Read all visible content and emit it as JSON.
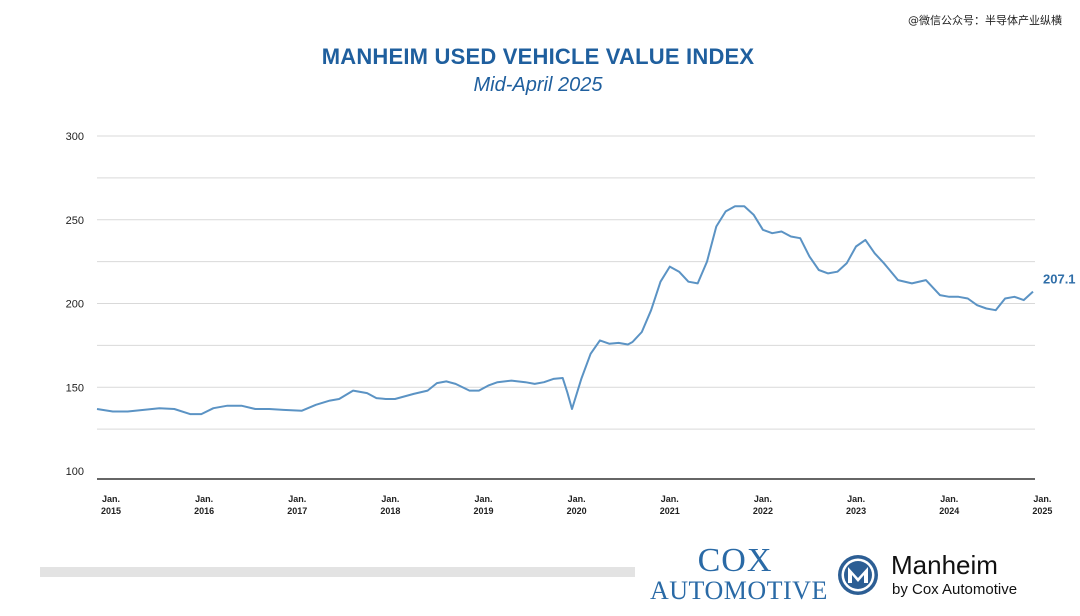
{
  "watermark": "@微信公众号：半导体产业纵横",
  "chart_data": {
    "type": "line",
    "title": "MANHEIM USED VEHICLE VALUE INDEX",
    "subtitle": "Mid-April 2025",
    "ylim": [
      100,
      300
    ],
    "yticks": [
      100,
      150,
      200,
      250,
      300
    ],
    "xlim": [
      2015.0,
      2025.05
    ],
    "grid": "horizontal",
    "x_ticks": [
      {
        "x": 2015,
        "label": "Jan. 2015"
      },
      {
        "x": 2016,
        "label": "Jan. 2016"
      },
      {
        "x": 2017,
        "label": "Jan. 2017"
      },
      {
        "x": 2018,
        "label": "Jan. 2018"
      },
      {
        "x": 2019,
        "label": "Jan. 2019"
      },
      {
        "x": 2020,
        "label": "Jan. 2020"
      },
      {
        "x": 2021,
        "label": "Jan. 2021"
      },
      {
        "x": 2022,
        "label": "Jan. 2022"
      },
      {
        "x": 2023,
        "label": "Jan. 2023"
      },
      {
        "x": 2024,
        "label": "Jan. 2024"
      },
      {
        "x": 2025,
        "label": "Jan. 2025"
      }
    ],
    "end_label": "207.1",
    "line_color": "#5b93c4",
    "x": [
      2015.0,
      2015.17,
      2015.33,
      2015.5,
      2015.67,
      2015.83,
      2016.0,
      2016.12,
      2016.25,
      2016.4,
      2016.55,
      2016.7,
      2016.85,
      2017.0,
      2017.2,
      2017.35,
      2017.5,
      2017.6,
      2017.75,
      2017.9,
      2018.0,
      2018.1,
      2018.2,
      2018.4,
      2018.55,
      2018.65,
      2018.75,
      2018.85,
      2019.0,
      2019.1,
      2019.2,
      2019.3,
      2019.45,
      2019.6,
      2019.7,
      2019.8,
      2019.9,
      2020.0,
      2020.05,
      2020.1,
      2020.2,
      2020.3,
      2020.4,
      2020.5,
      2020.6,
      2020.7,
      2020.75,
      2020.85,
      2020.95,
      2021.05,
      2021.15,
      2021.25,
      2021.35,
      2021.45,
      2021.55,
      2021.65,
      2021.75,
      2021.85,
      2021.95,
      2022.05,
      2022.15,
      2022.25,
      2022.35,
      2022.45,
      2022.55,
      2022.65,
      2022.75,
      2022.85,
      2022.95,
      2023.05,
      2023.15,
      2023.25,
      2023.35,
      2023.45,
      2023.6,
      2023.75,
      2023.9,
      2024.05,
      2024.15,
      2024.25,
      2024.35,
      2024.45,
      2024.55,
      2024.65,
      2024.75,
      2024.85,
      2024.95,
      2025.05
    ],
    "values": [
      137,
      135.5,
      135.5,
      136.5,
      137.5,
      137,
      134,
      134,
      137.5,
      139,
      139,
      137,
      137,
      136.5,
      136,
      139.5,
      142,
      143,
      148,
      146.5,
      143.5,
      143,
      143,
      146,
      148,
      152.5,
      153.5,
      152,
      148,
      148,
      151,
      153,
      154,
      153,
      152,
      153,
      155,
      155.5,
      147,
      137,
      155,
      170,
      178,
      176,
      176.5,
      175.5,
      177,
      183,
      196,
      213,
      222,
      219,
      213,
      212,
      225,
      246,
      255,
      258,
      258,
      253,
      244,
      242,
      243,
      240,
      239,
      228,
      220,
      218,
      219,
      224,
      234,
      238,
      230,
      224,
      214,
      212,
      214,
      205,
      204,
      204,
      203,
      199,
      197,
      196,
      203,
      204,
      202,
      207.1
    ]
  }
}
